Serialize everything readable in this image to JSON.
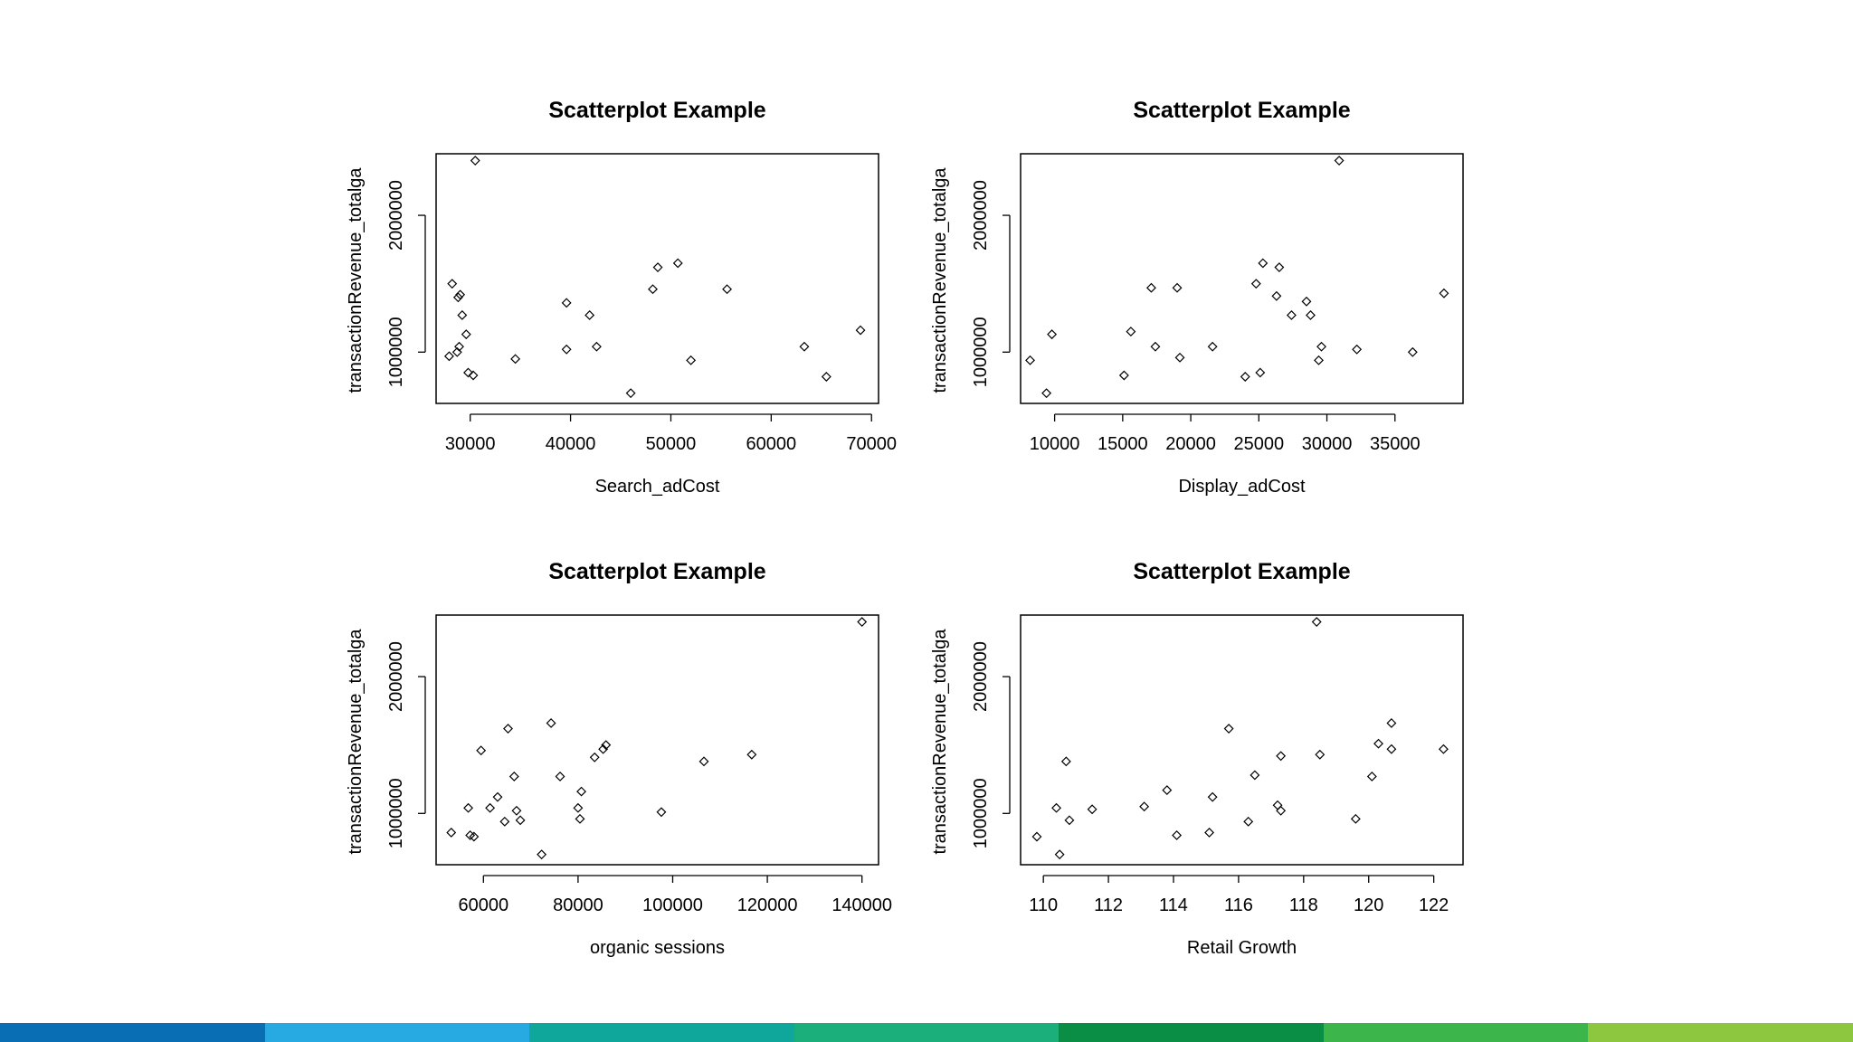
{
  "chart_data": [
    {
      "type": "scatter",
      "title": "Scatterplot Example",
      "xlabel": "Search_adCost",
      "ylabel": "transactionRevenue_totalga",
      "xlim": [
        26600,
        70700
      ],
      "ylim": [
        625000,
        2450000
      ],
      "xticks": [
        30000,
        40000,
        50000,
        60000,
        70000
      ],
      "xtick_labels": [
        "30000",
        "40000",
        "50000",
        "60000",
        "70000"
      ],
      "yticks": [
        1000000,
        2000000
      ],
      "ytick_labels": [
        "1000000",
        "2000000"
      ],
      "points": [
        [
          30500,
          2400000
        ],
        [
          28200,
          1500000
        ],
        [
          28800,
          1400000
        ],
        [
          29000,
          1420000
        ],
        [
          29200,
          1270000
        ],
        [
          29600,
          1130000
        ],
        [
          28900,
          1040000
        ],
        [
          28700,
          1000000
        ],
        [
          27900,
          970000
        ],
        [
          29800,
          850000
        ],
        [
          30300,
          830000
        ],
        [
          34500,
          950000
        ],
        [
          39600,
          1360000
        ],
        [
          41900,
          1270000
        ],
        [
          39600,
          1020000
        ],
        [
          42600,
          1040000
        ],
        [
          48200,
          1460000
        ],
        [
          48700,
          1620000
        ],
        [
          50700,
          1650000
        ],
        [
          55600,
          1460000
        ],
        [
          52000,
          940000
        ],
        [
          46000,
          700000
        ],
        [
          63300,
          1040000
        ],
        [
          65500,
          820000
        ],
        [
          68900,
          1160000
        ]
      ]
    },
    {
      "type": "scatter",
      "title": "Scatterplot Example",
      "xlabel": "Display_adCost",
      "ylabel": "transactionRevenue_totalga",
      "xlim": [
        7500,
        40000
      ],
      "ylim": [
        625000,
        2450000
      ],
      "xticks": [
        10000,
        15000,
        20000,
        25000,
        30000,
        35000
      ],
      "xtick_labels": [
        "10000",
        "15000",
        "20000",
        "25000",
        "30000",
        "35000"
      ],
      "yticks": [
        1000000,
        2000000
      ],
      "ytick_labels": [
        "1000000",
        "2000000"
      ],
      "points": [
        [
          8200,
          940000
        ],
        [
          9800,
          1130000
        ],
        [
          9400,
          700000
        ],
        [
          15100,
          830000
        ],
        [
          15600,
          1150000
        ],
        [
          17400,
          1040000
        ],
        [
          17100,
          1470000
        ],
        [
          19000,
          1470000
        ],
        [
          19200,
          960000
        ],
        [
          21600,
          1040000
        ],
        [
          24000,
          820000
        ],
        [
          25100,
          850000
        ],
        [
          24800,
          1500000
        ],
        [
          25300,
          1650000
        ],
        [
          26500,
          1620000
        ],
        [
          26300,
          1410000
        ],
        [
          27400,
          1270000
        ],
        [
          28500,
          1370000
        ],
        [
          28800,
          1270000
        ],
        [
          29400,
          940000
        ],
        [
          29600,
          1040000
        ],
        [
          32200,
          1020000
        ],
        [
          30900,
          2400000
        ],
        [
          36300,
          1000000
        ],
        [
          38600,
          1430000
        ]
      ]
    },
    {
      "type": "scatter",
      "title": "Scatterplot Example",
      "xlabel": "organic sessions",
      "ylabel": "transactionRevenue_totalga",
      "xlim": [
        50000,
        143500
      ],
      "ylim": [
        625000,
        2450000
      ],
      "xticks": [
        60000,
        80000,
        100000,
        120000,
        140000
      ],
      "xtick_labels": [
        "60000",
        "80000",
        "100000",
        "120000",
        "140000"
      ],
      "yticks": [
        1000000,
        2000000
      ],
      "ytick_labels": [
        "1000000",
        "2000000"
      ],
      "points": [
        [
          53200,
          860000
        ],
        [
          56800,
          1040000
        ],
        [
          57200,
          840000
        ],
        [
          58000,
          830000
        ],
        [
          59500,
          1460000
        ],
        [
          61400,
          1040000
        ],
        [
          63000,
          1120000
        ],
        [
          64500,
          940000
        ],
        [
          65200,
          1620000
        ],
        [
          66500,
          1270000
        ],
        [
          67000,
          1020000
        ],
        [
          67800,
          950000
        ],
        [
          72300,
          700000
        ],
        [
          74300,
          1660000
        ],
        [
          76200,
          1270000
        ],
        [
          80000,
          1040000
        ],
        [
          80400,
          960000
        ],
        [
          80700,
          1160000
        ],
        [
          83500,
          1410000
        ],
        [
          85300,
          1470000
        ],
        [
          85900,
          1500000
        ],
        [
          97600,
          1010000
        ],
        [
          106600,
          1380000
        ],
        [
          116700,
          1430000
        ],
        [
          140000,
          2400000
        ]
      ]
    },
    {
      "type": "scatter",
      "title": "Scatterplot Example",
      "xlabel": "Retail Growth",
      "ylabel": "transactionRevenue_totalga",
      "xlim": [
        109.3,
        122.9
      ],
      "ylim": [
        625000,
        2450000
      ],
      "xticks": [
        110,
        112,
        114,
        116,
        118,
        120,
        122
      ],
      "xtick_labels": [
        "110",
        "112",
        "114",
        "116",
        "118",
        "120",
        "122"
      ],
      "yticks": [
        1000000,
        2000000
      ],
      "ytick_labels": [
        "1000000",
        "2000000"
      ],
      "points": [
        [
          109.8,
          830000
        ],
        [
          110.4,
          1040000
        ],
        [
          110.5,
          700000
        ],
        [
          110.7,
          1380000
        ],
        [
          110.8,
          950000
        ],
        [
          111.5,
          1030000
        ],
        [
          113.1,
          1050000
        ],
        [
          113.8,
          1170000
        ],
        [
          114.1,
          840000
        ],
        [
          115.1,
          860000
        ],
        [
          115.2,
          1120000
        ],
        [
          115.7,
          1620000
        ],
        [
          116.3,
          940000
        ],
        [
          116.5,
          1280000
        ],
        [
          117.2,
          1060000
        ],
        [
          117.3,
          1420000
        ],
        [
          117.3,
          1020000
        ],
        [
          118.4,
          2400000
        ],
        [
          118.5,
          1430000
        ],
        [
          119.6,
          960000
        ],
        [
          120.1,
          1270000
        ],
        [
          120.3,
          1510000
        ],
        [
          120.7,
          1660000
        ],
        [
          120.7,
          1470000
        ],
        [
          122.3,
          1470000
        ]
      ]
    }
  ],
  "footer": {
    "colors": [
      "#0A6EB4",
      "#27A9E1",
      "#0FA69C",
      "#1BAF7B",
      "#0A8E45",
      "#3CB54A",
      "#8DC63F"
    ]
  }
}
